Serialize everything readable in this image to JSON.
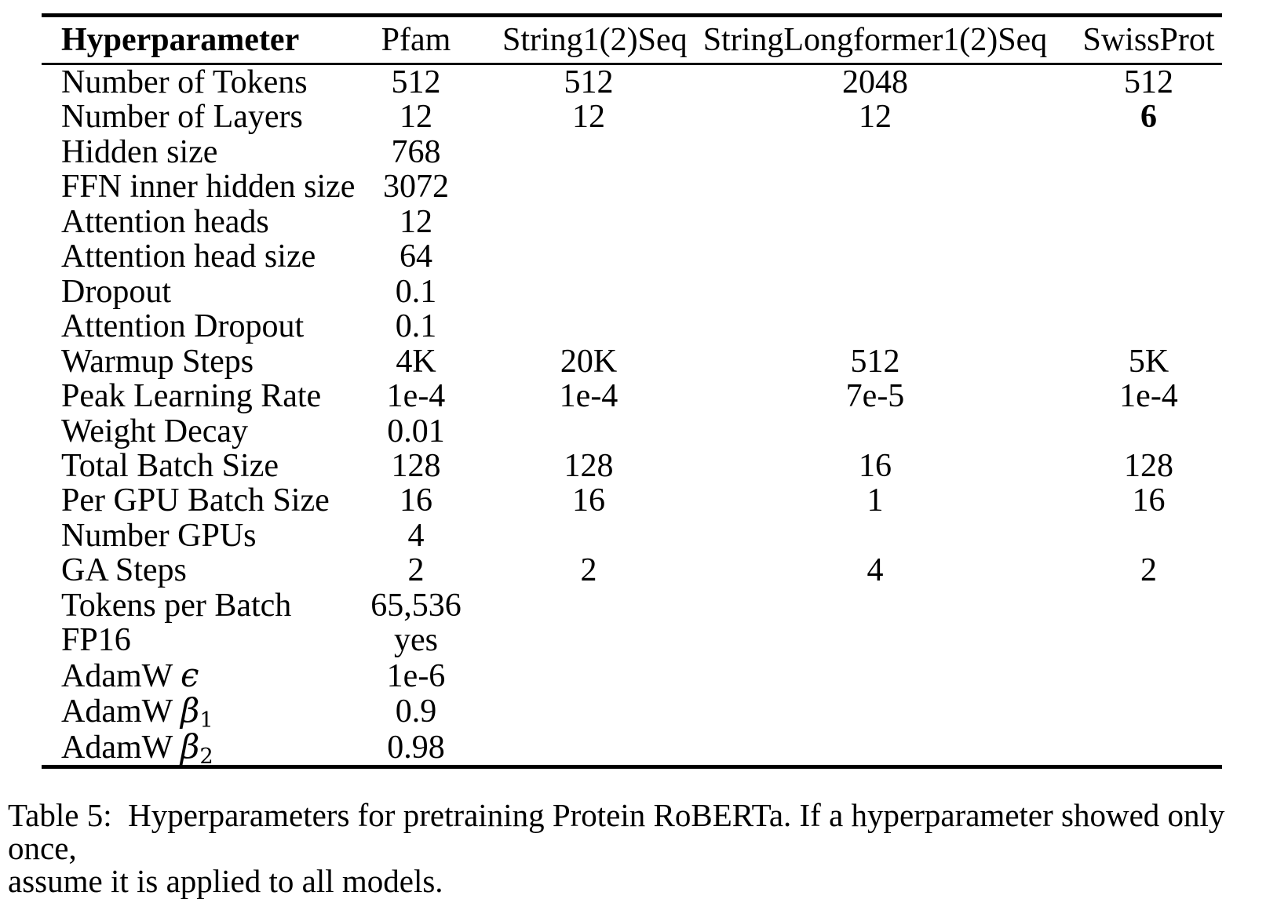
{
  "table": {
    "header": {
      "label": "Hyperparameter",
      "models": [
        "Pfam",
        "String1(2)Seq",
        "StringLongformer1(2)Seq",
        "SwissProt"
      ]
    },
    "rows": [
      {
        "label": "Number of Tokens",
        "values": [
          "512",
          "512",
          "2048",
          "512"
        ]
      },
      {
        "label": "Number of Layers",
        "values": [
          "12",
          "12",
          "12",
          "6"
        ],
        "bold_cols": [
          3
        ]
      },
      {
        "label": "Hidden size",
        "values": [
          "768",
          "",
          "",
          ""
        ]
      },
      {
        "label": "FFN inner hidden size",
        "values": [
          "3072",
          "",
          "",
          ""
        ]
      },
      {
        "label": "Attention heads",
        "values": [
          "12",
          "",
          "",
          ""
        ]
      },
      {
        "label": "Attention head size",
        "values": [
          "64",
          "",
          "",
          ""
        ]
      },
      {
        "label": "Dropout",
        "values": [
          "0.1",
          "",
          "",
          ""
        ]
      },
      {
        "label": "Attention Dropout",
        "values": [
          "0.1",
          "",
          "",
          ""
        ]
      },
      {
        "label": "Warmup Steps",
        "values": [
          "4K",
          "20K",
          "512",
          "5K"
        ]
      },
      {
        "label": "Peak Learning Rate",
        "values": [
          "1e-4",
          "1e-4",
          "7e-5",
          "1e-4"
        ]
      },
      {
        "label": "Weight Decay",
        "values": [
          "0.01",
          "",
          "",
          ""
        ]
      },
      {
        "label": "Total Batch Size",
        "values": [
          "128",
          "128",
          "16",
          "128"
        ]
      },
      {
        "label": "Per GPU Batch Size",
        "values": [
          "16",
          "16",
          "1",
          "16"
        ]
      },
      {
        "label": "Number GPUs",
        "values": [
          "4",
          "",
          "",
          ""
        ]
      },
      {
        "label": "GA Steps",
        "values": [
          "2",
          "2",
          "4",
          "2"
        ]
      },
      {
        "label": "Tokens per Batch",
        "values": [
          "65,536",
          "",
          "",
          ""
        ]
      },
      {
        "label": "FP16",
        "values": [
          "yes",
          "",
          "",
          ""
        ]
      },
      {
        "label": "AdamW",
        "math_symbol": "ϵ",
        "values": [
          "1e-6",
          "",
          "",
          ""
        ]
      },
      {
        "label": "AdamW",
        "math_symbol": "β",
        "math_sub": "1",
        "values": [
          "0.9",
          "",
          "",
          ""
        ]
      },
      {
        "label": "AdamW",
        "math_symbol": "β",
        "math_sub": "2",
        "values": [
          "0.98",
          "",
          "",
          ""
        ]
      }
    ]
  },
  "caption": {
    "lines": [
      "Table 5:  Hyperparameters for pretraining Protein RoBERTa. If a hyperparameter showed only once,",
      "assume it is applied to all models."
    ]
  },
  "colors": {
    "text": "#000000",
    "background": "#ffffff",
    "rule": "#000000"
  }
}
